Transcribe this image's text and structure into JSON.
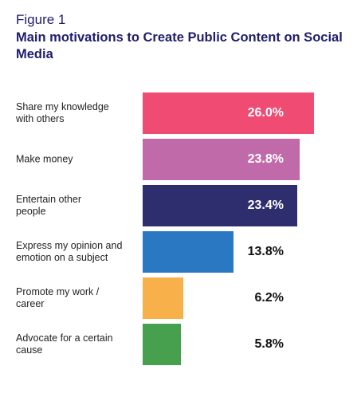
{
  "chart_data": {
    "type": "bar",
    "orientation": "horizontal",
    "subtitle": "Figure 1",
    "title": "Main motivations to Create Public Content on Social Media",
    "categories": [
      "Share my knowledge with others",
      "Make money",
      "Entertain other people",
      "Express my opinion and emotion on a subject",
      "Promote my work / career",
      "Advocate for a certain cause"
    ],
    "values": [
      26.0,
      23.8,
      23.4,
      13.8,
      6.2,
      5.8
    ],
    "value_labels": [
      "26.0%",
      "23.8%",
      "23.4%",
      "13.8%",
      "6.2%",
      "5.8%"
    ],
    "colors": [
      "#ef4b73",
      "#c06aaa",
      "#2e2d6e",
      "#2b78c2",
      "#f7b04a",
      "#46a04d"
    ]
  }
}
